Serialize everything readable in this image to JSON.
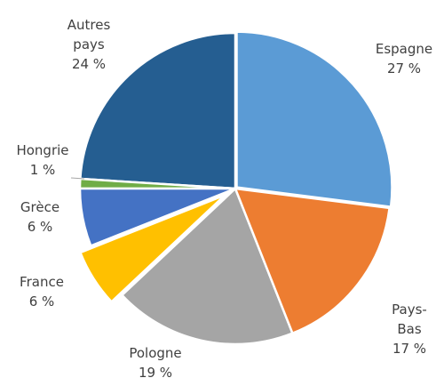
{
  "chart_data": {
    "type": "pie",
    "categories": [
      "Espagne",
      "Pays-Bas",
      "Pologne",
      "France",
      "Grèce",
      "Hongrie",
      "Autres pays"
    ],
    "values": [
      27,
      17,
      19,
      6,
      6,
      1,
      24
    ],
    "value_labels": [
      "27 %",
      "17 %",
      "19 %",
      "6 %",
      "6 %",
      "1 %",
      "24 %"
    ],
    "colors": [
      "#5b9bd5",
      "#ed7d31",
      "#a5a5a5",
      "#ffc000",
      "#4472c4",
      "#70ad47",
      "#255e91"
    ]
  }
}
